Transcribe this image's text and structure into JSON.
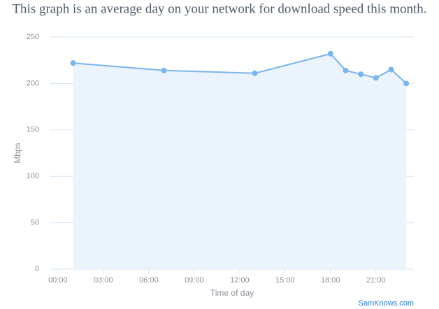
{
  "chart_data": {
    "type": "line",
    "title": "This graph is an average day on your network for download speed this month.",
    "x_label": "Time of day",
    "y_label": "Mbps",
    "credit": "SamKnows.com",
    "x": [
      1,
      7,
      13,
      18,
      19,
      20,
      21,
      22,
      23
    ],
    "series": [
      {
        "name": "Download speed",
        "color": "#7cb5ec",
        "values": [
          222,
          214,
          211,
          232,
          214,
          210,
          206,
          215,
          200
        ]
      }
    ],
    "xlim": [
      -0.5,
      23.5
    ],
    "xticks": [
      {
        "value": 0,
        "label": "00:00"
      },
      {
        "value": 3,
        "label": "03:00"
      },
      {
        "value": 6,
        "label": "06:00"
      },
      {
        "value": 9,
        "label": "09:00"
      },
      {
        "value": 12,
        "label": "12:00"
      },
      {
        "value": 15,
        "label": "15:00"
      },
      {
        "value": 18,
        "label": "18:00"
      },
      {
        "value": 21,
        "label": "21:00"
      }
    ],
    "ylim": [
      0,
      250
    ],
    "yticks": [
      0,
      50,
      100,
      150,
      200,
      250
    ],
    "grid": true,
    "area": true,
    "area_color": "#ebf3fc",
    "grid_color": "#d3e6f3"
  }
}
